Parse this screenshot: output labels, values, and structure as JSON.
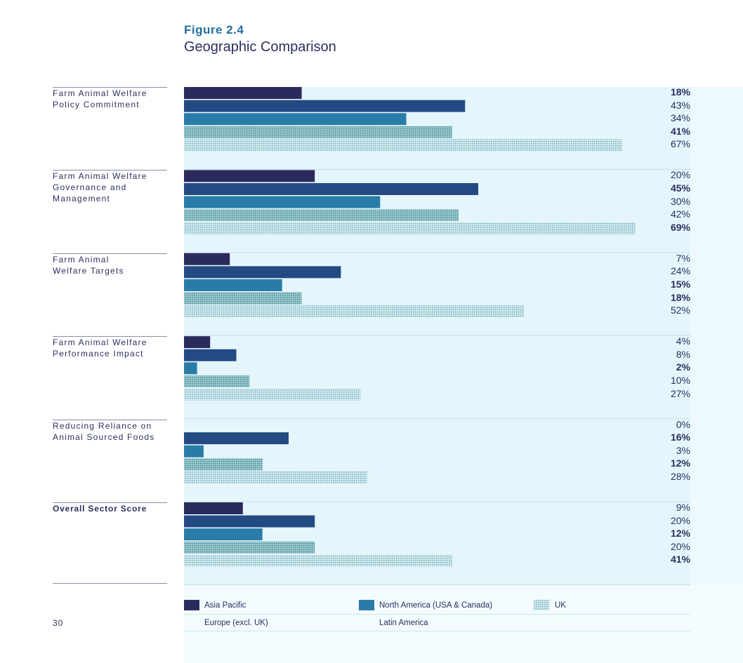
{
  "figure": {
    "number": "Figure 2.4",
    "title": "Geographic Comparison"
  },
  "page_number": "30",
  "colors": {
    "asia_pacific": "#2b2a5c",
    "europe": "#234a82",
    "north_america": "#2a7ca8",
    "latin_america": "#5fa0a6",
    "uk": "#8fc3cc",
    "panel": "#e4f6fb"
  },
  "chart_data": {
    "type": "bar",
    "orientation": "horizontal",
    "xlim": [
      0,
      100
    ],
    "categories": [
      "Farm Animal Welfare\nPolicy Commitment",
      "Farm Animal Welfare\nGovernance and\nManagement",
      "Farm Animal\nWelfare Targets",
      "Farm Animal Welfare\nPerformance Impact",
      "Reducing Reliance on\nAnimal Sourced Foods",
      "Overall Sector Score"
    ],
    "series": [
      {
        "name": "Asia Pacific",
        "values": [
          18,
          20,
          7,
          4,
          0,
          9
        ],
        "labels": [
          "18%",
          "20%",
          "7%",
          "4%",
          "0%",
          "9%"
        ]
      },
      {
        "name": "Europe (excl. UK)",
        "values": [
          43,
          45,
          24,
          8,
          16,
          20
        ],
        "labels": [
          "43%",
          "45%",
          "24%",
          "8%",
          "16%",
          "20%"
        ]
      },
      {
        "name": "North America (USA & Canada)",
        "values": [
          34,
          30,
          15,
          2,
          3,
          12
        ],
        "labels": [
          "34%",
          "30%",
          "15%",
          "2%",
          "3%",
          "12%"
        ]
      },
      {
        "name": "Latin America",
        "values": [
          41,
          42,
          18,
          10,
          12,
          20
        ],
        "labels": [
          "41%",
          "42%",
          "18%",
          "10%",
          "12%",
          "20%"
        ]
      },
      {
        "name": "UK",
        "values": [
          67,
          69,
          52,
          27,
          28,
          41
        ],
        "labels": [
          "67%",
          "69%",
          "52%",
          "27%",
          "28%",
          "41%"
        ]
      }
    ],
    "legend": [
      "Asia Pacific",
      "North America (USA & Canada)",
      "UK",
      "Europe (excl. UK)",
      "Latin America"
    ]
  }
}
